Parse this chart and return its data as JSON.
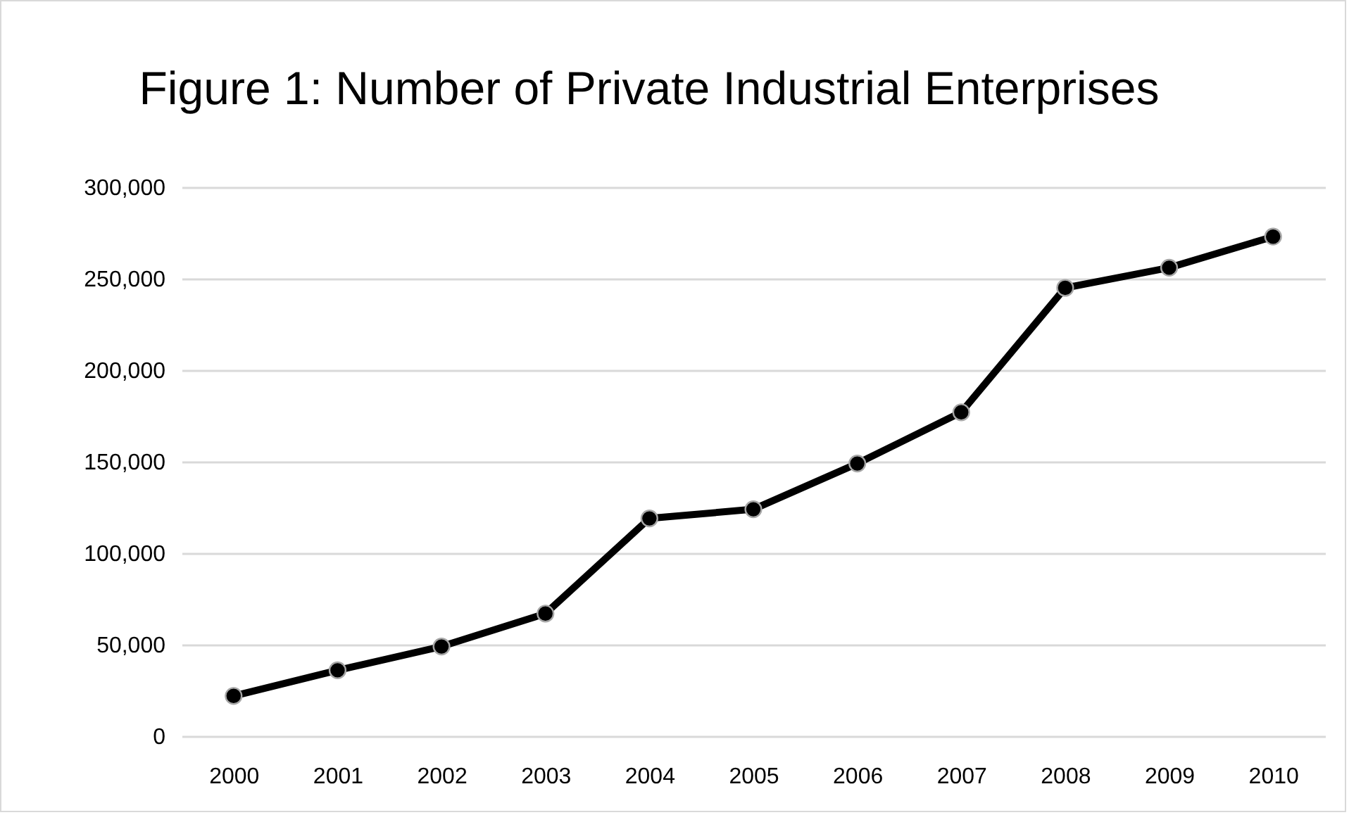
{
  "chart_data": {
    "type": "line",
    "title": "Figure 1: Number of Private Industrial Enterprises",
    "categories": [
      "2000",
      "2001",
      "2002",
      "2003",
      "2004",
      "2005",
      "2006",
      "2007",
      "2008",
      "2009",
      "2010"
    ],
    "series": [
      {
        "color": "#000000",
        "values": [
          22000,
          36000,
          49000,
          67000,
          119000,
          124000,
          149000,
          177000,
          245000,
          256000,
          273000
        ]
      }
    ],
    "ylim": [
      0,
      300000
    ],
    "yticks": [
      0,
      {
        "value": 50000,
        "label": "50,000"
      },
      {
        "value": 100000,
        "label": "100,000"
      },
      {
        "value": 150000,
        "label": "150,000"
      },
      {
        "value": 200000,
        "label": "200,000"
      },
      {
        "value": 250000,
        "label": "250,000"
      },
      {
        "value": 300000,
        "label": "300,000"
      }
    ],
    "grid": "y",
    "marker": "circle",
    "line_style": "solid"
  }
}
